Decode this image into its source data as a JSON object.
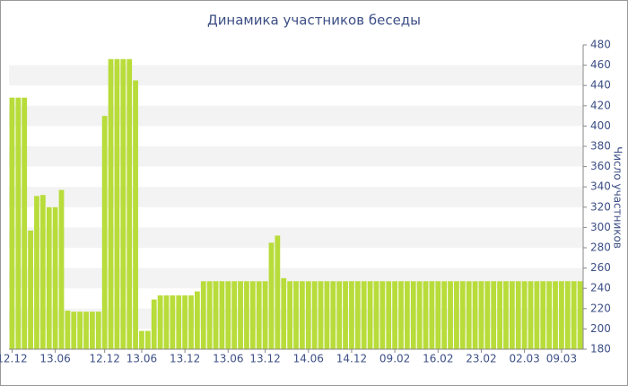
{
  "chart_data": {
    "type": "bar",
    "title": "Динамика участников беседы",
    "y_axis_label": "Число участников",
    "color": "#b8dc3a",
    "grid": true,
    "categories": [
      "12.12",
      null,
      null,
      null,
      null,
      null,
      null,
      "13.06",
      null,
      null,
      null,
      null,
      null,
      null,
      null,
      "12.12",
      null,
      null,
      null,
      null,
      null,
      "13.06",
      null,
      null,
      null,
      null,
      null,
      null,
      "13.12",
      null,
      null,
      null,
      null,
      null,
      null,
      "13.06",
      null,
      null,
      null,
      null,
      null,
      "13.12",
      null,
      null,
      null,
      null,
      null,
      null,
      "14.06",
      null,
      null,
      null,
      null,
      null,
      null,
      "14.12",
      null,
      null,
      null,
      null,
      null,
      null,
      "09.02",
      null,
      null,
      null,
      null,
      null,
      null,
      "16.02",
      null,
      null,
      null,
      null,
      null,
      null,
      "23.02",
      null,
      null,
      null,
      null,
      null,
      null,
      "02.03",
      null,
      null,
      null,
      null,
      null,
      "09.03",
      null,
      null,
      null
    ],
    "values": [
      428,
      428,
      428,
      297,
      331,
      332,
      320,
      320,
      337,
      218,
      217,
      217,
      217,
      217,
      217,
      410,
      466,
      466,
      466,
      466,
      445,
      198,
      198,
      229,
      233,
      233,
      233,
      233,
      233,
      233,
      237,
      247,
      247,
      247,
      247,
      247,
      247,
      247,
      247,
      247,
      247,
      247,
      285,
      292,
      250,
      247,
      247,
      247,
      247,
      247,
      247,
      247,
      247,
      247,
      247,
      247,
      247,
      247,
      247,
      247,
      247,
      247,
      247,
      247,
      247,
      247,
      247,
      247,
      247,
      247,
      247,
      247,
      247,
      247,
      247,
      247,
      247,
      247,
      247,
      247,
      247,
      247,
      247,
      247,
      247,
      247,
      247,
      247,
      247,
      247,
      247,
      247,
      247
    ],
    "ylim": [
      180,
      480
    ],
    "yticks": [
      180,
      200,
      220,
      240,
      260,
      280,
      300,
      320,
      340,
      360,
      380,
      400,
      420,
      440,
      460,
      480
    ]
  }
}
